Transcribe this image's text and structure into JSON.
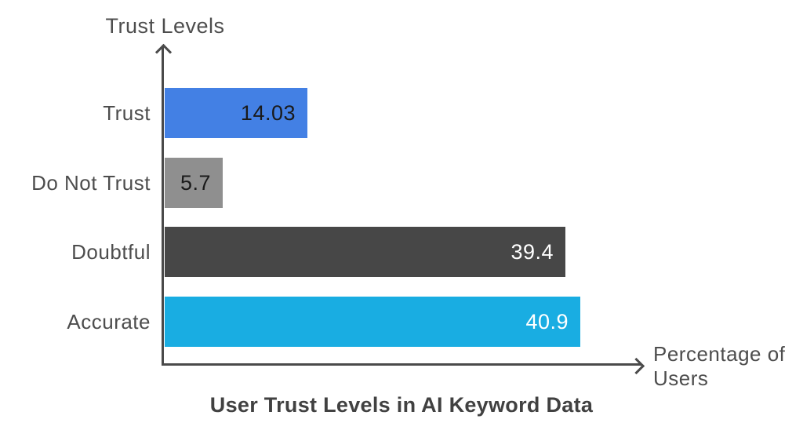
{
  "chart_data": {
    "type": "bar",
    "orientation": "horizontal",
    "title": "User Trust Levels in AI Keyword Data",
    "y_axis_label": "Trust Levels",
    "x_axis_label": "Percentage of Users",
    "categories": [
      "Trust",
      "Do Not Trust",
      "Doubtful",
      "Accurate"
    ],
    "values": [
      14.03,
      5.7,
      39.4,
      40.9
    ],
    "value_labels": [
      "14.03",
      "5.7",
      "39.4",
      "40.9"
    ],
    "bar_colors": [
      "#4380E4",
      "#8F8F8F",
      "#474747",
      "#19ADE2"
    ],
    "value_label_colors": [
      "#1A1A1A",
      "#1A1A1A",
      "#FFFFFF",
      "#FFFFFF"
    ],
    "xlim": [
      0,
      40.9
    ],
    "grid": false,
    "legend": false,
    "colors": {
      "axis": "#4A4A4A",
      "category_label": "#4D4D4D",
      "axis_title_text": "#4D4D4D",
      "title_text": "#414141",
      "background": "#FFFFFF"
    }
  }
}
